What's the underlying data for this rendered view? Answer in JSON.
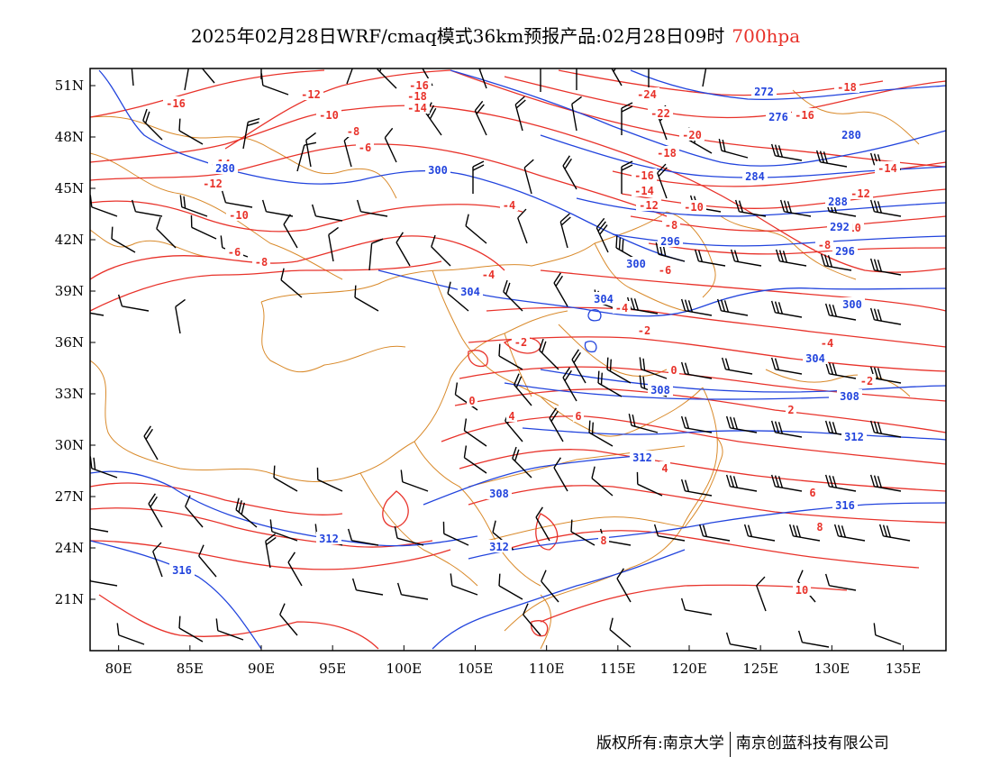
{
  "header": {
    "title": "2025年02月28日WRF/cmaq模式36km预报产品:02月28日09时",
    "level": "700hpa"
  },
  "axes": {
    "lat_labels": [
      "51N",
      "48N",
      "45N",
      "42N",
      "39N",
      "36N",
      "33N",
      "30N",
      "27N",
      "24N",
      "21N"
    ],
    "lon_labels": [
      "80E",
      "85E",
      "90E",
      "95E",
      "100E",
      "105E",
      "110E",
      "115E",
      "120E",
      "125E",
      "130E",
      "135E"
    ],
    "lat_values": [
      51,
      48,
      45,
      42,
      39,
      36,
      33,
      30,
      27,
      24,
      21
    ],
    "lon_values": [
      80,
      85,
      90,
      95,
      100,
      105,
      110,
      115,
      120,
      125,
      130,
      135
    ],
    "lon_range": [
      78,
      138
    ],
    "lat_range": [
      18,
      52
    ]
  },
  "colors": {
    "temperature": "#e8322a",
    "geopotential": "#2244dd",
    "boundary": "#d98a2b",
    "wind": "#000000"
  },
  "contours": {
    "temperature": [
      "-16",
      "-12",
      "-16",
      "-18",
      "-14",
      "-10",
      "-8",
      "-6",
      "-14",
      "-12",
      "-10",
      "-6",
      "-8",
      "-4",
      "-4",
      "-24",
      "-22",
      "-20",
      "-18",
      "-16",
      "-14",
      "-12",
      "-10",
      "-8",
      "-6",
      "-4",
      "-2",
      "0",
      "4",
      "6",
      "8",
      "10",
      "-2",
      "0",
      "2",
      "4",
      "6",
      "8",
      "-18",
      "-16",
      "-14",
      "-12",
      "-10",
      "-8",
      "-4",
      "-2",
      "0"
    ],
    "geopotential": [
      "280",
      "300",
      "304",
      "304",
      "296",
      "300",
      "308",
      "312",
      "308",
      "312",
      "316",
      "312",
      "316",
      "272",
      "276",
      "280",
      "284",
      "288",
      "292",
      "296",
      "300",
      "304",
      "308",
      "312"
    ]
  },
  "credit": {
    "left": "版权所有:南京大学",
    "right": "南京创蓝科技有限公司"
  },
  "chart_data": {
    "type": "map",
    "title": "2025年02月28日WRF/cmaq模式36km预报产品:02月28日09时 700hpa",
    "xlabel": "",
    "ylabel": "",
    "xlim": [
      78,
      138
    ],
    "ylim": [
      18,
      52
    ],
    "series": [
      {
        "name": "",
        "values": [
          -16,
          -12,
          -10,
          -8,
          -6,
          -4,
          -2,
          0,
          2,
          4,
          6,
          8,
          10
        ]
      },
      {
        "name": "",
        "values": [
          272,
          276,
          280,
          284,
          288,
          292,
          296,
          300,
          304,
          308,
          312,
          316
        ]
      }
    ]
  }
}
